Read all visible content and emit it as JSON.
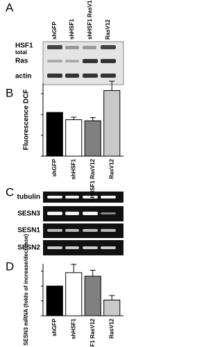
{
  "panel_labels": [
    "A",
    "B",
    "C",
    "D"
  ],
  "panel_a": {
    "lanes": [
      "shGFP",
      "shHSF1",
      "shHSF1 RasV12",
      "RasV12"
    ],
    "rows": [
      "HSF1",
      "total",
      "Ras",
      "actin"
    ]
  },
  "panel_c": {
    "rows": [
      "tubulin",
      "SESN3",
      "SESN1",
      "SESN2"
    ]
  },
  "chart_data": [
    {
      "type": "bar",
      "y_label": "Fluorescence DCF",
      "categories": [
        "shGFP",
        "shHSF1",
        "shHSF1 RasV12",
        "RasV12"
      ],
      "values": [
        21,
        17.5,
        17,
        31.5
      ],
      "errors": [
        0,
        1.2,
        1.5,
        4.5
      ],
      "colors": [
        "#000000",
        "#ffffff",
        "#808080",
        "#c8c8c8"
      ],
      "ylim": [
        0,
        35
      ],
      "yticks": [
        0,
        10,
        20,
        30
      ]
    },
    {
      "type": "bar",
      "y_label": "SESN3 mRNA (folds of increase/decrease)",
      "categories": [
        "shGFP",
        "shHSF1",
        "shHSF1 RasV12",
        "RasV12"
      ],
      "values": [
        1.0,
        1.45,
        1.33,
        0.53
      ],
      "errors": [
        0,
        0.28,
        0.2,
        0.15
      ],
      "colors": [
        "#000000",
        "#ffffff",
        "#808080",
        "#c8c8c8"
      ],
      "ylim": [
        0,
        1.75
      ],
      "yticks": [
        0,
        0.5,
        1,
        1.5
      ]
    }
  ]
}
